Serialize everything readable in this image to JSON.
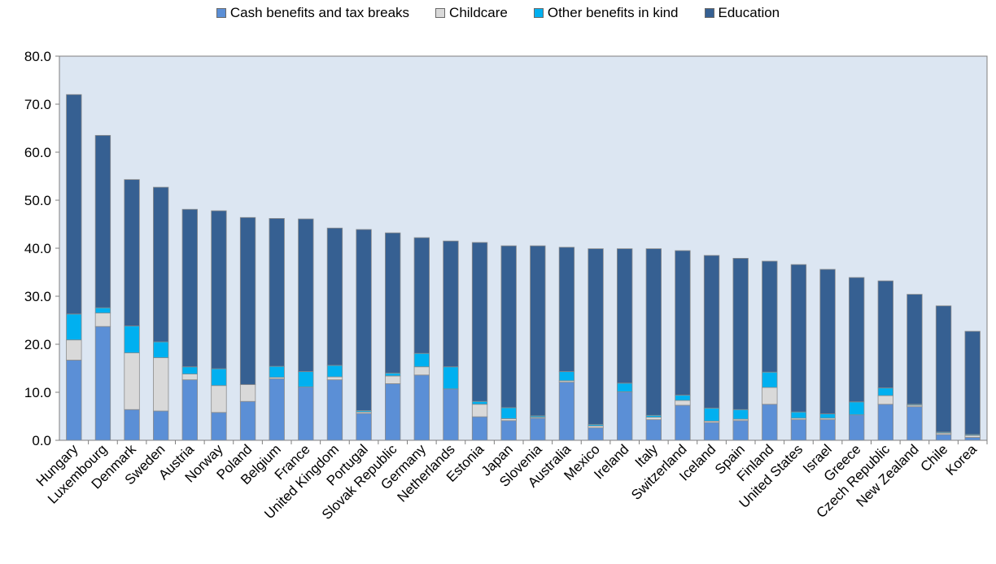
{
  "chart_data": {
    "type": "bar",
    "stacked": true,
    "ylim": [
      0,
      80
    ],
    "yticks": [
      "0.0",
      "10.0",
      "20.0",
      "30.0",
      "40.0",
      "50.0",
      "60.0",
      "70.0",
      "80.0"
    ],
    "grid": false,
    "legend_position": "top",
    "categories": [
      "Hungary",
      "Luxembourg",
      "Denmark",
      "Sweden",
      "Austria",
      "Norway",
      "Poland",
      "Belgium",
      "France",
      "United Kingdom",
      "Portugal",
      "Slovak Republic",
      "Germany",
      "Netherlands",
      "Estonia",
      "Japan",
      "Slovenia",
      "Australia",
      "Mexico",
      "Ireland",
      "Italy",
      "Switzerland",
      "Iceland",
      "Spain",
      "Finland",
      "United States",
      "Israel",
      "Greece",
      "Czech Republic",
      "New Zealand",
      "Chile",
      "Korea"
    ],
    "series": [
      {
        "name": "Cash benefits and tax breaks",
        "color": "#5b8fd6",
        "values": [
          16.7,
          23.7,
          6.4,
          6.1,
          12.6,
          5.8,
          8.1,
          12.8,
          11.1,
          12.6,
          5.6,
          11.8,
          13.6,
          10.7,
          4.9,
          4.1,
          4.6,
          12.1,
          2.6,
          10.1,
          4.3,
          7.3,
          3.7,
          4.1,
          7.5,
          4.3,
          4.3,
          5.3,
          7.5,
          7.0,
          1.2,
          0.6
        ]
      },
      {
        "name": "Childcare",
        "color": "#d9d9d9",
        "values": [
          4.2,
          2.8,
          11.8,
          11.1,
          1.2,
          5.6,
          3.5,
          0.3,
          0.0,
          0.6,
          0.3,
          1.6,
          1.7,
          0.0,
          2.6,
          0.4,
          0.2,
          0.3,
          0.4,
          0.0,
          0.5,
          1.0,
          0.3,
          0.3,
          3.5,
          0.3,
          0.3,
          0.0,
          1.8,
          0.3,
          0.3,
          0.4
        ]
      },
      {
        "name": "Other benefits in kind",
        "color": "#00b0f0",
        "values": [
          5.4,
          1.1,
          5.6,
          3.3,
          1.5,
          3.5,
          0.0,
          2.3,
          3.2,
          2.4,
          0.3,
          0.6,
          2.8,
          4.6,
          0.6,
          2.3,
          0.3,
          1.9,
          0.3,
          1.8,
          0.4,
          1.1,
          2.7,
          2.0,
          3.2,
          1.3,
          0.9,
          2.7,
          1.6,
          0.2,
          0.2,
          0.2
        ]
      },
      {
        "name": "Education",
        "color": "#366092",
        "values": [
          45.7,
          35.9,
          30.5,
          32.2,
          32.8,
          32.9,
          34.8,
          30.8,
          31.8,
          28.6,
          37.7,
          29.2,
          24.1,
          26.2,
          33.1,
          33.7,
          35.4,
          25.9,
          36.6,
          28.0,
          34.7,
          30.1,
          31.8,
          31.5,
          23.1,
          30.7,
          30.1,
          25.9,
          22.3,
          22.9,
          26.3,
          21.5
        ]
      }
    ]
  }
}
